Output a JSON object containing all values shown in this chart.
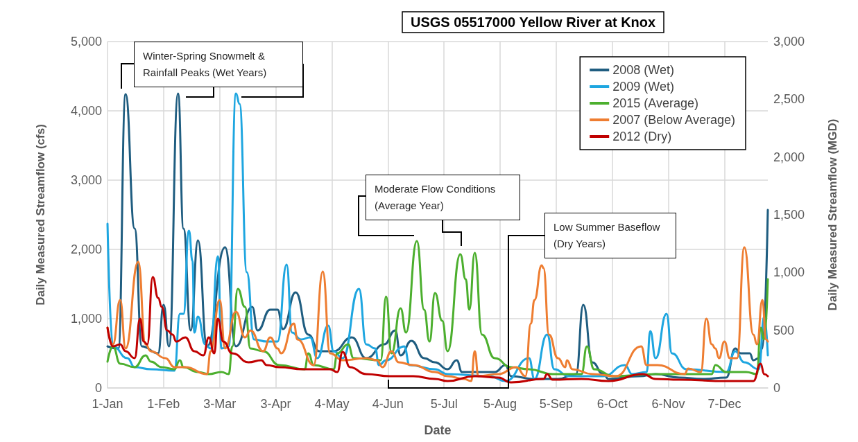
{
  "chart_data": {
    "type": "line",
    "title": "USGS 05517000 Yellow River at Knox",
    "xlabel": "Date",
    "ylabel": "Daily Measured Streamflow (cfs)",
    "y2label": "Daily Measured Streamflow (MGD)",
    "xlim": [
      "--01-01",
      "--12-31"
    ],
    "xticks": [
      {
        "value": "--01-01",
        "label": "1-Jan"
      },
      {
        "value": "--02-01",
        "label": "1-Feb"
      },
      {
        "value": "--03-03",
        "label": "3-Mar"
      },
      {
        "value": "--04-03",
        "label": "3-Apr"
      },
      {
        "value": "--05-04",
        "label": "4-May"
      },
      {
        "value": "--06-04",
        "label": "4-Jun"
      },
      {
        "value": "--07-05",
        "label": "5-Jul"
      },
      {
        "value": "--08-05",
        "label": "5-Aug"
      },
      {
        "value": "--09-05",
        "label": "5-Sep"
      },
      {
        "value": "--10-06",
        "label": "6-Oct"
      },
      {
        "value": "--11-06",
        "label": "6-Nov"
      },
      {
        "value": "--12-07",
        "label": "7-Dec"
      }
    ],
    "ylim": [
      0,
      5000
    ],
    "yticks": [
      0,
      {
        "value": 1000,
        "label": "1,000"
      },
      {
        "value": 2000,
        "label": "2,000"
      },
      {
        "value": 3000,
        "label": "3,000"
      },
      {
        "value": 4000,
        "label": "4,000"
      },
      {
        "value": 5000,
        "label": "5,000"
      }
    ],
    "y2lim": [
      0,
      3000
    ],
    "y2ticks": [
      0,
      500,
      {
        "value": 1000,
        "label": "1,000"
      },
      {
        "value": 1500,
        "label": "1,500"
      },
      {
        "value": 2000,
        "label": "2,000"
      },
      {
        "value": 2500,
        "label": "2,500"
      },
      {
        "value": 3000,
        "label": "3,000"
      }
    ],
    "grid": true,
    "legend": "top right",
    "marker": "none",
    "line_style": "solid",
    "annotations": [
      "Winter-Spring Snowmelt & Rainfall Peaks (Wet Years)",
      "Moderate Flow Conditions (Average Year)",
      "Low Summer Baseflow (Dry Years)"
    ],
    "series": [
      {
        "name": "2008 (Wet)",
        "color": "#1f5d80",
        "x": [
          "--01-01",
          "--01-07",
          "--01-11",
          "--01-16",
          "--01-20",
          "--01-29",
          "--02-01",
          "--02-04",
          "--02-09",
          "--02-12",
          "--02-16",
          "--02-20",
          "--02-25",
          "--03-06",
          "--03-12",
          "--03-21",
          "--03-24",
          "--03-31",
          "--04-04",
          "--04-07",
          "--04-14",
          "--04-21",
          "--04-27",
          "--05-05",
          "--05-15",
          "--05-23",
          "--06-02",
          "--06-08",
          "--06-11",
          "--06-17",
          "--06-24",
          "--06-30",
          "--07-07",
          "--07-12",
          "--07-15",
          "--07-23",
          "--08-02",
          "--08-08",
          "--08-11",
          "--08-24",
          "--09-06",
          "--09-16",
          "--09-20",
          "--09-25",
          "--10-01",
          "--10-04",
          "--10-21",
          "--10-30",
          "--11-12",
          "--11-25",
          "--12-08",
          "--12-13",
          "--12-16",
          "--12-21",
          "--12-23",
          "--12-26",
          "--12-28",
          "--12-31"
        ],
        "values": [
          600,
          570,
          4240,
          2300,
          600,
          500,
          1200,
          600,
          4250,
          2300,
          830,
          2130,
          600,
          2030,
          600,
          1170,
          830,
          1130,
          1130,
          850,
          1380,
          770,
          530,
          530,
          730,
          430,
          630,
          830,
          470,
          680,
          430,
          370,
          270,
          400,
          230,
          230,
          230,
          330,
          170,
          130,
          130,
          200,
          1200,
          370,
          200,
          130,
          170,
          200,
          150,
          130,
          150,
          570,
          500,
          500,
          400,
          430,
          570,
          2570
        ]
      },
      {
        "name": "2009 (Wet)",
        "color": "#1ea6e0",
        "x": [
          "--01-01",
          "--01-04",
          "--01-12",
          "--01-16",
          "--01-25",
          "--02-07",
          "--02-10",
          "--02-12",
          "--02-15",
          "--02-17",
          "--02-18",
          "--02-20",
          "--02-24",
          "--02-27",
          "--03-02",
          "--03-04",
          "--03-08",
          "--03-12",
          "--03-14",
          "--03-18",
          "--03-22",
          "--03-29",
          "--04-04",
          "--04-09",
          "--04-12",
          "--04-17",
          "--04-22",
          "--04-26",
          "--05-02",
          "--05-05",
          "--05-10",
          "--05-19",
          "--05-23",
          "--05-28",
          "--05-30",
          "--06-03",
          "--06-13",
          "--06-16",
          "--06-30",
          "--07-07",
          "--07-30",
          "--08-08",
          "--08-21",
          "--08-24",
          "--08-31",
          "--09-04",
          "--09-12",
          "--10-01",
          "--10-13",
          "--10-17",
          "--10-25",
          "--10-27",
          "--10-30",
          "--11-05",
          "--11-08",
          "--11-16",
          "--12-08",
          "--12-13",
          "--12-18",
          "--12-26",
          "--12-29",
          "--12-31"
        ],
        "values": [
          2370,
          600,
          430,
          300,
          270,
          250,
          1070,
          1070,
          2270,
          1830,
          800,
          1030,
          630,
          570,
          1900,
          570,
          600,
          4250,
          4100,
          1670,
          700,
          670,
          670,
          1780,
          800,
          700,
          730,
          430,
          900,
          530,
          430,
          1430,
          630,
          570,
          330,
          400,
          600,
          330,
          270,
          200,
          170,
          100,
          430,
          130,
          770,
          270,
          170,
          170,
          330,
          200,
          230,
          820,
          430,
          1070,
          500,
          270,
          230,
          530,
          370,
          270,
          1030,
          470
        ]
      },
      {
        "name": "2015 (Average)",
        "color": "#4caf2e",
        "x": [
          "--01-01",
          "--01-04",
          "--01-08",
          "--01-16",
          "--01-22",
          "--01-25",
          "--01-31",
          "--02-07",
          "--02-10",
          "--02-12",
          "--02-20",
          "--02-26",
          "--03-04",
          "--03-08",
          "--03-10",
          "--03-13",
          "--03-17",
          "--03-20",
          "--03-27",
          "--04-05",
          "--04-19",
          "--04-21",
          "--04-24",
          "--05-05",
          "--05-07",
          "--05-13",
          "--05-16",
          "--05-31",
          "--06-03",
          "--06-06",
          "--06-11",
          "--06-14",
          "--06-20",
          "--06-24",
          "--06-27",
          "--06-30",
          "--07-04",
          "--07-07",
          "--07-14",
          "--07-17",
          "--07-19",
          "--07-22",
          "--07-26",
          "--08-02",
          "--08-11",
          "--08-21",
          "--09-03",
          "--09-19",
          "--09-22",
          "--09-26",
          "--10-07",
          "--10-30",
          "--11-30",
          "--12-02",
          "--12-08",
          "--12-19",
          "--12-25",
          "--12-27",
          "--12-29",
          "--12-31"
        ],
        "values": [
          380,
          600,
          350,
          300,
          470,
          380,
          300,
          270,
          400,
          300,
          230,
          200,
          230,
          200,
          600,
          1430,
          1170,
          570,
          530,
          330,
          270,
          500,
          330,
          270,
          500,
          630,
          430,
          400,
          1320,
          500,
          1150,
          800,
          2120,
          1130,
          670,
          1370,
          970,
          530,
          1930,
          1570,
          1130,
          1950,
          770,
          430,
          300,
          270,
          200,
          200,
          600,
          270,
          170,
          200,
          200,
          330,
          230,
          230,
          200,
          870,
          700,
          1570
        ]
      },
      {
        "name": "2007 (Below Average)",
        "color": "#ee7d31",
        "x": [
          "--01-01",
          "--01-04",
          "--01-08",
          "--01-11",
          "--01-18",
          "--01-22",
          "--01-25",
          "--02-02",
          "--02-07",
          "--02-13",
          "--02-25",
          "--02-27",
          "--03-03",
          "--03-06",
          "--03-12",
          "--03-17",
          "--03-20",
          "--03-27",
          "--03-31",
          "--04-04",
          "--04-06",
          "--04-13",
          "--04-15",
          "--04-24",
          "--04-29",
          "--05-03",
          "--05-10",
          "--05-23",
          "--05-29",
          "--06-01",
          "--06-06",
          "--06-10",
          "--06-18",
          "--06-30",
          "--07-07",
          "--07-16",
          "--07-20",
          "--07-22",
          "--07-24",
          "--08-04",
          "--08-14",
          "--08-19",
          "--08-22",
          "--08-24",
          "--08-28",
          "--08-29",
          "--09-01",
          "--09-06",
          "--09-10",
          "--09-11",
          "--09-14",
          "--09-25",
          "--10-08",
          "--10-22",
          "--10-25",
          "--10-31",
          "--11-15",
          "--11-17",
          "--11-24",
          "--11-27",
          "--11-30",
          "--12-02",
          "--12-04",
          "--12-07",
          "--12-10",
          "--12-14",
          "--12-18",
          "--12-23",
          "--12-25",
          "--12-28",
          "--12-30",
          "--12-31"
        ],
        "values": [
          870,
          630,
          1270,
          570,
          1820,
          630,
          530,
          430,
          300,
          300,
          200,
          530,
          1270,
          570,
          1100,
          730,
          830,
          530,
          730,
          570,
          500,
          930,
          700,
          330,
          1680,
          500,
          400,
          430,
          400,
          300,
          530,
          370,
          330,
          230,
          170,
          130,
          100,
          530,
          170,
          200,
          300,
          170,
          930,
          1270,
          1770,
          1730,
          770,
          430,
          300,
          400,
          270,
          200,
          170,
          600,
          330,
          330,
          200,
          280,
          230,
          1000,
          630,
          570,
          430,
          670,
          430,
          430,
          2030,
          770,
          630,
          1270,
          700,
          670
        ]
      },
      {
        "name": "2012 (Dry)",
        "color": "#c00000",
        "x": [
          "--01-01",
          "--01-04",
          "--01-08",
          "--01-11",
          "--01-16",
          "--01-19",
          "--01-21",
          "--01-23",
          "--01-26",
          "--01-29",
          "--01-31",
          "--02-03",
          "--02-06",
          "--02-08",
          "--02-13",
          "--02-18",
          "--02-23",
          "--02-26",
          "--02-29",
          "--03-02",
          "--03-05",
          "--03-10",
          "--03-19",
          "--03-26",
          "--03-29",
          "--04-05",
          "--04-18",
          "--05-03",
          "--05-07",
          "--05-10",
          "--05-14",
          "--05-23",
          "--06-05",
          "--06-18",
          "--06-30",
          "--07-07",
          "--07-22",
          "--08-04",
          "--08-11",
          "--08-29",
          "--08-31",
          "--09-03",
          "--09-19",
          "--10-04",
          "--10-23",
          "--10-30",
          "--11-12",
          "--12-08",
          "--12-23",
          "--12-27",
          "--12-29",
          "--12-31"
        ],
        "values": [
          870,
          600,
          630,
          530,
          430,
          1000,
          670,
          630,
          1600,
          1300,
          1170,
          830,
          770,
          670,
          730,
          530,
          470,
          730,
          500,
          1000,
          670,
          500,
          370,
          400,
          330,
          300,
          270,
          270,
          230,
          520,
          300,
          200,
          170,
          170,
          130,
          100,
          170,
          150,
          80,
          130,
          200,
          120,
          130,
          100,
          200,
          130,
          120,
          100,
          100,
          350,
          200,
          170
        ]
      }
    ]
  }
}
